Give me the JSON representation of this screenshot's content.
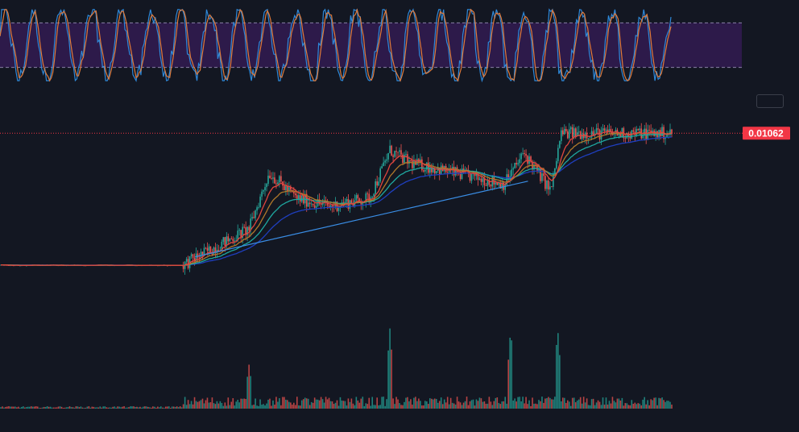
{
  "colors": {
    "background": "#131722",
    "oscillator_band": "#2d1a4a",
    "oscillator_band_line": "#8a82a8",
    "osc_k": "#2e88d8",
    "osc_d": "#e07a3a",
    "price_line": "#f23645",
    "candle_up": "#26a69a",
    "candle_down": "#ef5350",
    "ema_fast": "#e0463e",
    "ema_mid": "#b0782a",
    "ema_slow": "#1fa8a0",
    "ema_long": "#1f3fbf",
    "trend_line": "#3a8ee6",
    "volume_up": "#26a69a",
    "volume_down": "#ef5350",
    "price_label_bg": "#f23645"
  },
  "last_price_label": "0.01062",
  "chart_data": [
    {
      "type": "line",
      "panel": "oscillator",
      "ylim": [
        0,
        100
      ],
      "band": [
        20,
        80
      ],
      "series": [
        {
          "key": "k",
          "color": "osc_k",
          "pattern": "oscillating"
        },
        {
          "key": "d",
          "color": "osc_d",
          "pattern": "oscillating"
        }
      ]
    },
    {
      "type": "candlestick",
      "panel": "price",
      "last_price": 0.01062,
      "ylim": [
        0.0,
        0.0115
      ],
      "segments": [
        {
          "x": [
            0,
            0.27
          ],
          "y": [
            0.0012,
            0.0012
          ]
        },
        {
          "x": [
            0.27,
            0.37
          ],
          "y": [
            0.0012,
            0.0038
          ]
        },
        {
          "x": [
            0.37,
            0.4
          ],
          "y": [
            0.0038,
            0.0078
          ]
        },
        {
          "x": [
            0.4,
            0.44
          ],
          "y": [
            0.0078,
            0.006
          ]
        },
        {
          "x": [
            0.44,
            0.49
          ],
          "y": [
            0.006,
            0.0054
          ]
        },
        {
          "x": [
            0.49,
            0.55
          ],
          "y": [
            0.0054,
            0.006
          ]
        },
        {
          "x": [
            0.55,
            0.58
          ],
          "y": [
            0.006,
            0.0094
          ]
        },
        {
          "x": [
            0.58,
            0.61
          ],
          "y": [
            0.0094,
            0.0085
          ]
        },
        {
          "x": [
            0.61,
            0.75
          ],
          "y": [
            0.0085,
            0.007
          ]
        },
        {
          "x": [
            0.75,
            0.78
          ],
          "y": [
            0.007,
            0.0092
          ]
        },
        {
          "x": [
            0.78,
            0.82
          ],
          "y": [
            0.0092,
            0.0065
          ]
        },
        {
          "x": [
            0.82,
            0.835
          ],
          "y": [
            0.0065,
            0.01062
          ]
        }
      ],
      "trend_line": {
        "x": [
          0.29,
          0.785
        ],
        "y": [
          0.0018,
          0.0072
        ]
      }
    },
    {
      "type": "bar",
      "panel": "volume",
      "spikes": [
        {
          "x": 0.37,
          "value": 0.55
        },
        {
          "x": 0.58,
          "value": 1.0
        },
        {
          "x": 0.76,
          "value": 1.0
        },
        {
          "x": 0.83,
          "value": 1.0
        }
      ]
    }
  ]
}
